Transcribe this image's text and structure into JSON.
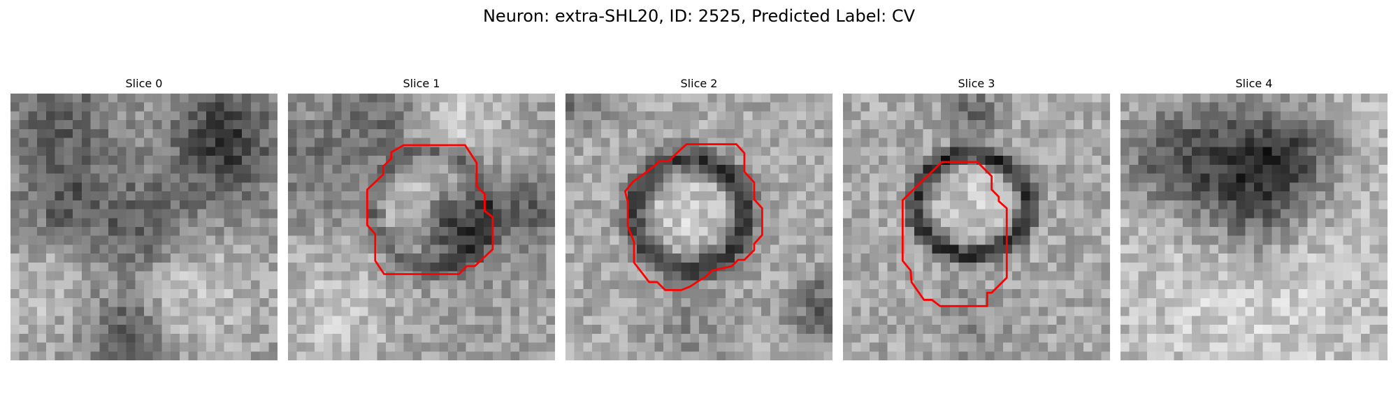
{
  "figure": {
    "title": "Neuron: extra-SHL20, ID: 2525, Predicted Label: CV"
  },
  "panels": [
    {
      "title": "Slice 0",
      "has_contour": false
    },
    {
      "title": "Slice 1",
      "has_contour": true
    },
    {
      "title": "Slice 2",
      "has_contour": true
    },
    {
      "title": "Slice 3",
      "has_contour": true
    },
    {
      "title": "Slice 4",
      "has_contour": false
    }
  ],
  "colors": {
    "background": "#ffffff",
    "contour": "#ff0000"
  }
}
